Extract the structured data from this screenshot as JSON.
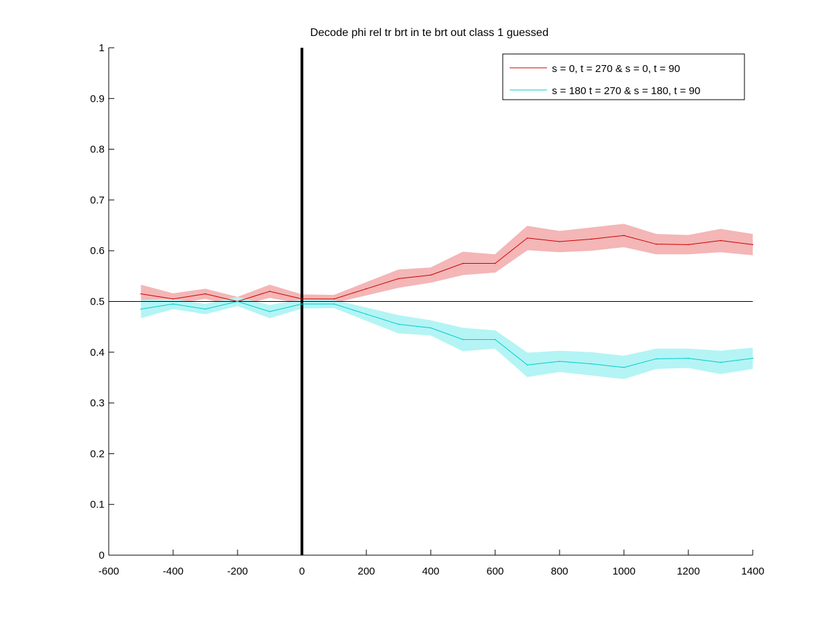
{
  "chart_data": {
    "type": "line",
    "title": "Decode phi rel tr brt in te brt out  class 1 guessed",
    "xlabel": "",
    "ylabel": "",
    "xlim": [
      -600,
      1400
    ],
    "ylim": [
      0,
      1
    ],
    "xticks": [
      -600,
      -400,
      -200,
      0,
      200,
      400,
      600,
      800,
      1000,
      1200,
      1400
    ],
    "yticks": [
      0,
      0.1,
      0.2,
      0.3,
      0.4,
      0.5,
      0.6,
      0.7,
      0.8,
      0.9,
      1
    ],
    "ytick_labels": [
      "0",
      "0.1",
      "0.2",
      "0.3",
      "0.4",
      "0.5",
      "0.6",
      "0.7",
      "0.8",
      "0.9",
      "1"
    ],
    "grid": false,
    "legend_position": "top-right",
    "x": [
      -500,
      -400,
      -300,
      -200,
      -100,
      0,
      100,
      200,
      300,
      400,
      500,
      600,
      700,
      800,
      900,
      1000,
      1100,
      1200,
      1300,
      1400
    ],
    "series": [
      {
        "name": "s = 0, t = 270 & s = 0, t = 90",
        "color": "#cc0000",
        "band_color": "#f4b6b6",
        "values": [
          0.515,
          0.505,
          0.515,
          0.5,
          0.52,
          0.505,
          0.505,
          0.525,
          0.545,
          0.552,
          0.575,
          0.575,
          0.625,
          0.618,
          0.623,
          0.63,
          0.613,
          0.612,
          0.62,
          0.612
        ],
        "upper": [
          0.532,
          0.515,
          0.524,
          0.508,
          0.532,
          0.513,
          0.512,
          0.537,
          0.562,
          0.566,
          0.597,
          0.592,
          0.648,
          0.638,
          0.645,
          0.652,
          0.632,
          0.63,
          0.642,
          0.632
        ],
        "lower": [
          0.498,
          0.496,
          0.506,
          0.492,
          0.508,
          0.497,
          0.498,
          0.513,
          0.528,
          0.538,
          0.553,
          0.558,
          0.602,
          0.598,
          0.601,
          0.608,
          0.594,
          0.594,
          0.598,
          0.592
        ]
      },
      {
        "name": "s = 180 t = 270 & s = 180, t = 90",
        "color": "#00cccc",
        "band_color": "#b4f4f4",
        "values": [
          0.485,
          0.495,
          0.485,
          0.5,
          0.48,
          0.495,
          0.495,
          0.475,
          0.455,
          0.448,
          0.425,
          0.425,
          0.375,
          0.382,
          0.377,
          0.37,
          0.387,
          0.388,
          0.38,
          0.388
        ],
        "upper": [
          0.502,
          0.504,
          0.494,
          0.508,
          0.492,
          0.503,
          0.502,
          0.487,
          0.472,
          0.462,
          0.447,
          0.442,
          0.398,
          0.402,
          0.399,
          0.392,
          0.406,
          0.406,
          0.402,
          0.408
        ],
        "lower": [
          0.468,
          0.486,
          0.476,
          0.492,
          0.468,
          0.487,
          0.488,
          0.463,
          0.438,
          0.434,
          0.403,
          0.408,
          0.352,
          0.362,
          0.355,
          0.348,
          0.368,
          0.37,
          0.358,
          0.368
        ]
      }
    ],
    "reference_lines": [
      {
        "orientation": "horizontal",
        "value": 0.5,
        "color": "#000000"
      },
      {
        "orientation": "vertical",
        "value": 0,
        "color": "#000000"
      }
    ]
  }
}
